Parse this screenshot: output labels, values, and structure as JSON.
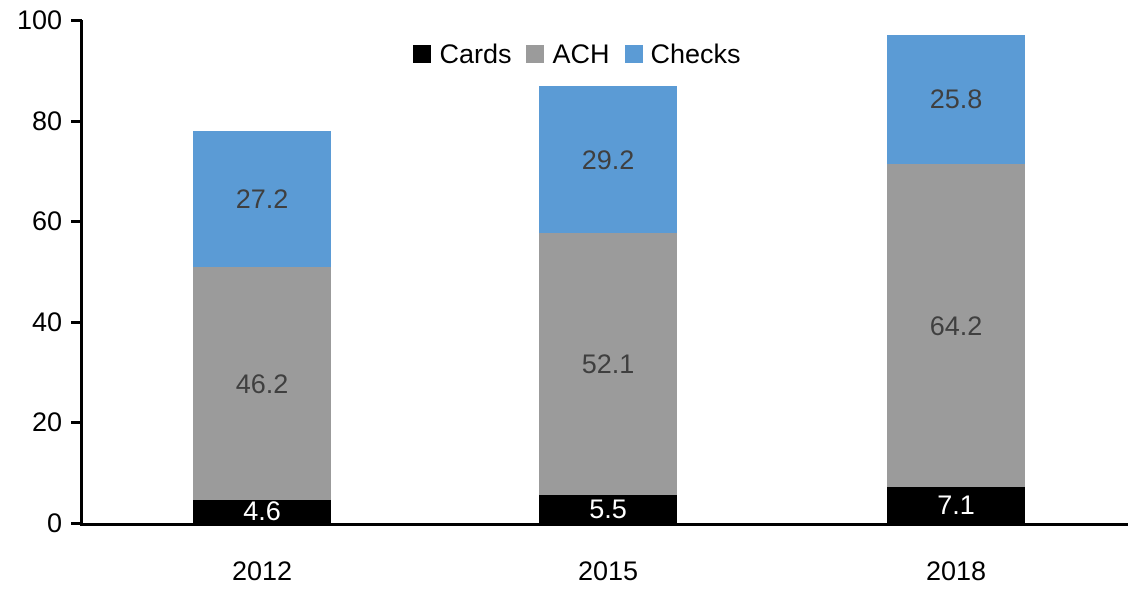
{
  "chart_data": {
    "type": "bar",
    "stacked": true,
    "title": "",
    "xlabel": "",
    "ylabel": "",
    "categories": [
      "2012",
      "2015",
      "2018"
    ],
    "series": [
      {
        "name": "Cards",
        "color": "#000000",
        "label_color": "#ffffff",
        "values": [
          4.6,
          5.5,
          7.1
        ]
      },
      {
        "name": "ACH",
        "color": "#9b9b9b",
        "label_color": "#3f3f3f",
        "values": [
          46.2,
          52.1,
          64.2
        ]
      },
      {
        "name": "Checks",
        "color": "#5b9bd5",
        "label_color": "#3f3f3f",
        "values": [
          27.2,
          29.2,
          25.8
        ]
      }
    ],
    "yticks": [
      0,
      20,
      40,
      60,
      80,
      100
    ],
    "ylim": [
      0,
      100
    ],
    "grid": false,
    "legend_position": "top",
    "axis_color": "#000000",
    "value_label_format": "one-decimal"
  }
}
